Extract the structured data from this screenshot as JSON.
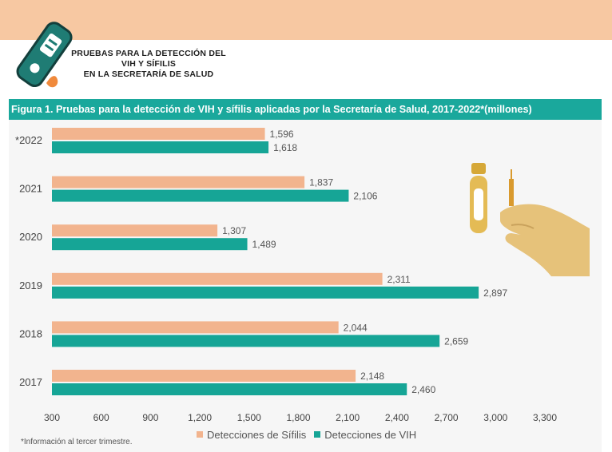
{
  "header": {
    "title_lines": [
      "PRUEBAS PARA LA DETECCIÓN DEL",
      "VIH Y SÍFILIS",
      "EN LA SECRETARÍA DE SALUD"
    ]
  },
  "figure": {
    "title": "Figura 1. Pruebas para la detección de VIH y sífilis aplicadas por la Secretaría de Salud, 2017-2022*(millones)",
    "footnote": "*Información al tercer trimestre."
  },
  "icons": {
    "header": "test-device-icon",
    "illustration": "test-tube-hand-icon"
  },
  "colors": {
    "band": "#f7c8a2",
    "title_bar": "#1aa89c",
    "sifilis": "#f2b48e",
    "vih": "#16a596"
  },
  "chart_data": {
    "type": "bar",
    "orientation": "horizontal",
    "title": "Figura 1. Pruebas para la detección de VIH y sífilis aplicadas por la Secretaría de Salud, 2017-2022*(millones)",
    "categories": [
      "*2022",
      "2021",
      "2020",
      "2019",
      "2018",
      "2017"
    ],
    "series": [
      {
        "name": "Detecciones de Sífilis",
        "color": "#f2b48e",
        "values": [
          1596,
          1837,
          1307,
          2311,
          2044,
          2148
        ],
        "labels": [
          "1,596",
          "1,837",
          "1,307",
          "2,311",
          "2,044",
          "2,148"
        ]
      },
      {
        "name": "Detecciones de VIH",
        "color": "#16a596",
        "values": [
          1618,
          2106,
          1489,
          2897,
          2659,
          2460
        ],
        "labels": [
          "1,618",
          "2,106",
          "1,489",
          "2,897",
          "2,659",
          "2,460"
        ]
      }
    ],
    "xlim": [
      300,
      3300
    ],
    "xticks": [
      300,
      600,
      900,
      1200,
      1500,
      1800,
      2100,
      2400,
      2700,
      3000,
      3300
    ],
    "xtick_labels": [
      "300",
      "600",
      "900",
      "1,200",
      "1,500",
      "1,800",
      "2,100",
      "2,400",
      "2,700",
      "3,000",
      "3,300"
    ],
    "legend_position": "bottom",
    "grid": false
  }
}
